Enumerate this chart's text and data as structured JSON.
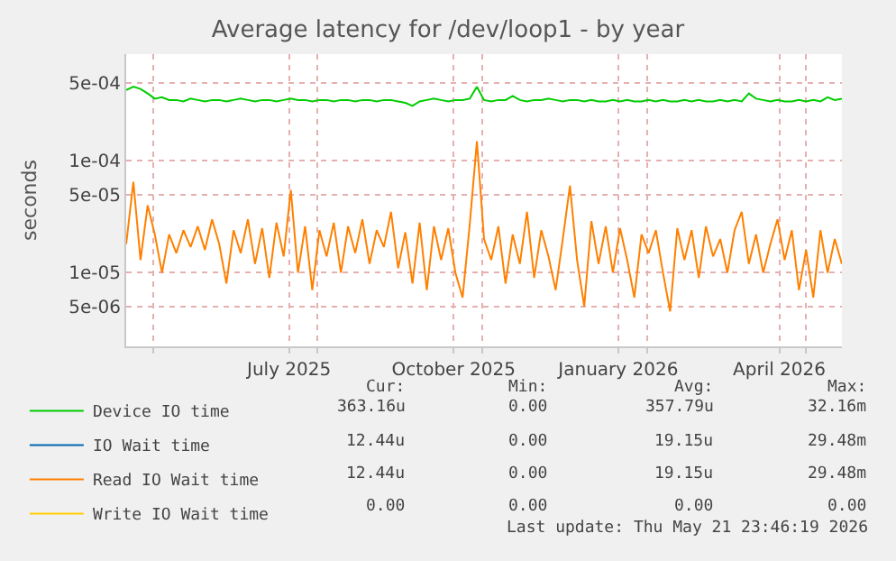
{
  "chart_data": {
    "type": "line",
    "title": "Average latency for /dev/loop1 - by year",
    "ylabel": "seconds",
    "log": "y",
    "x": [
      "2025-04-16",
      "2025-04-20",
      "2025-04-24",
      "2025-04-28",
      "2025-05-02",
      "2025-05-06",
      "2025-05-10",
      "2025-05-14",
      "2025-05-18",
      "2025-05-22",
      "2025-05-26",
      "2025-05-30",
      "2025-06-03",
      "2025-06-07",
      "2025-06-11",
      "2025-06-15",
      "2025-06-19",
      "2025-06-23",
      "2025-06-27",
      "2025-07-01",
      "2025-07-05",
      "2025-07-09",
      "2025-07-13",
      "2025-07-17",
      "2025-07-21",
      "2025-07-25",
      "2025-07-29",
      "2025-08-02",
      "2025-08-06",
      "2025-08-10",
      "2025-08-14",
      "2025-08-18",
      "2025-08-22",
      "2025-08-26",
      "2025-08-30",
      "2025-09-03",
      "2025-09-07",
      "2025-09-11",
      "2025-09-15",
      "2025-09-19",
      "2025-09-23",
      "2025-09-27",
      "2025-10-01",
      "2025-10-05",
      "2025-10-09",
      "2025-10-13",
      "2025-10-17",
      "2025-10-21",
      "2025-10-25",
      "2025-10-29",
      "2025-11-02",
      "2025-11-06",
      "2025-11-10",
      "2025-11-14",
      "2025-11-18",
      "2025-11-22",
      "2025-11-26",
      "2025-11-30",
      "2025-12-04",
      "2025-12-08",
      "2025-12-12",
      "2025-12-16",
      "2025-12-20",
      "2025-12-24",
      "2025-12-28",
      "2026-01-01",
      "2026-01-05",
      "2026-01-09",
      "2026-01-13",
      "2026-01-17",
      "2026-01-21",
      "2026-01-25",
      "2026-01-29",
      "2026-02-02",
      "2026-02-06",
      "2026-02-10",
      "2026-02-14",
      "2026-02-18",
      "2026-02-22",
      "2026-02-26",
      "2026-03-02",
      "2026-03-06",
      "2026-03-10",
      "2026-03-14",
      "2026-03-18",
      "2026-03-22",
      "2026-03-26",
      "2026-03-30",
      "2026-04-03",
      "2026-04-07",
      "2026-04-11",
      "2026-04-15",
      "2026-04-19",
      "2026-04-23",
      "2026-04-27",
      "2026-05-01",
      "2026-05-05",
      "2026-05-09",
      "2026-05-13",
      "2026-05-17",
      "2026-05-21"
    ],
    "series": [
      {
        "name": "Device IO time",
        "color": "#00cc00",
        "values": [
          0.00043,
          0.00046,
          0.00044,
          0.0004,
          0.00036,
          0.00037,
          0.00035,
          0.00035,
          0.00034,
          0.00036,
          0.00035,
          0.00034,
          0.00035,
          0.00035,
          0.00034,
          0.00035,
          0.00036,
          0.00035,
          0.00034,
          0.00035,
          0.00035,
          0.00034,
          0.00035,
          0.00036,
          0.00035,
          0.00035,
          0.00034,
          0.00035,
          0.00035,
          0.00034,
          0.00035,
          0.00035,
          0.00034,
          0.00035,
          0.00035,
          0.00034,
          0.00035,
          0.00035,
          0.00034,
          0.00033,
          0.00031,
          0.00034,
          0.00035,
          0.00036,
          0.00035,
          0.00034,
          0.00035,
          0.00035,
          0.00036,
          0.00046,
          0.00035,
          0.00034,
          0.00035,
          0.00035,
          0.00038,
          0.00035,
          0.00034,
          0.00035,
          0.00035,
          0.00036,
          0.00035,
          0.00034,
          0.00035,
          0.00035,
          0.00034,
          0.00035,
          0.00034,
          0.00034,
          0.00035,
          0.00034,
          0.00035,
          0.00034,
          0.00034,
          0.00035,
          0.00034,
          0.00035,
          0.00034,
          0.00034,
          0.00035,
          0.00034,
          0.00035,
          0.00034,
          0.00034,
          0.00035,
          0.00034,
          0.00035,
          0.00034,
          0.0004,
          0.00036,
          0.00035,
          0.00034,
          0.00035,
          0.00034,
          0.00034,
          0.00035,
          0.00034,
          0.00035,
          0.00034,
          0.00037,
          0.00035,
          0.00036
        ]
      },
      {
        "name": "IO Wait time",
        "color": "#0066b3",
        "values": [
          null,
          null,
          null,
          null,
          null,
          null,
          null,
          null,
          null,
          null,
          null,
          null,
          null,
          null,
          null,
          null,
          null,
          null,
          null,
          null,
          null,
          null,
          null,
          null,
          null,
          null,
          null,
          null,
          null,
          null,
          null,
          null,
          null,
          null,
          null,
          null,
          null,
          null,
          null,
          null,
          null,
          null,
          null,
          null,
          null,
          null,
          null,
          null,
          null,
          null,
          null,
          null,
          null,
          null,
          null,
          null,
          null,
          null,
          null,
          null,
          null,
          null,
          null,
          null,
          null,
          null,
          null,
          null,
          null,
          null,
          null,
          null,
          null,
          null,
          null,
          null,
          null,
          null,
          null,
          null,
          null,
          null,
          null,
          null,
          null,
          null,
          null,
          null,
          null,
          null,
          null,
          null,
          null,
          null,
          null,
          null,
          null,
          null,
          null,
          null,
          null
        ]
      },
      {
        "name": "Read IO Wait time",
        "color": "#ff8000",
        "values": [
          1.8e-05,
          6.5e-05,
          1.3e-05,
          4e-05,
          2.2e-05,
          1e-05,
          2.2e-05,
          1.5e-05,
          2.4e-05,
          1.7e-05,
          2.6e-05,
          1.6e-05,
          3e-05,
          1.8e-05,
          8e-06,
          2.4e-05,
          1.5e-05,
          3e-05,
          1.2e-05,
          2.5e-05,
          9e-06,
          2.8e-05,
          1.4e-05,
          5.5e-05,
          1e-05,
          2.6e-05,
          7e-06,
          2.4e-05,
          1.4e-05,
          2.8e-05,
          1e-05,
          2.6e-05,
          1.5e-05,
          3e-05,
          1.2e-05,
          2.4e-05,
          1.7e-05,
          3.5e-05,
          1.1e-05,
          2.3e-05,
          8e-06,
          2.8e-05,
          7e-06,
          2.6e-05,
          1.3e-05,
          2.5e-05,
          1e-05,
          6e-06,
          2.7e-05,
          0.00015,
          2e-05,
          1.3e-05,
          2.6e-05,
          8e-06,
          2.2e-05,
          1.2e-05,
          3.5e-05,
          9e-06,
          2.4e-05,
          1.4e-05,
          7e-06,
          2e-05,
          6e-05,
          1.3e-05,
          5e-06,
          2.9e-05,
          1.2e-05,
          2.6e-05,
          1e-05,
          2.5e-05,
          1.3e-05,
          6e-06,
          2.2e-05,
          1.5e-05,
          2.4e-05,
          1e-05,
          4.5e-06,
          2.5e-05,
          1.3e-05,
          2.4e-05,
          9e-06,
          2.6e-05,
          1.4e-05,
          2e-05,
          1e-05,
          2.4e-05,
          3.5e-05,
          1.2e-05,
          2.2e-05,
          1e-05,
          1.8e-05,
          3e-05,
          1.3e-05,
          2.4e-05,
          7e-06,
          1.6e-05,
          6e-06,
          2.4e-05,
          1e-05,
          2e-05,
          1.2e-05
        ]
      },
      {
        "name": "Write IO Wait time",
        "color": "#ffcc00",
        "values": [
          null,
          null,
          null,
          null,
          null,
          null,
          null,
          null,
          null,
          null,
          null,
          null,
          null,
          null,
          null,
          null,
          null,
          null,
          null,
          null,
          null,
          null,
          null,
          null,
          null,
          null,
          null,
          null,
          null,
          null,
          null,
          null,
          null,
          null,
          null,
          null,
          null,
          null,
          null,
          null,
          null,
          null,
          null,
          null,
          null,
          null,
          null,
          null,
          null,
          null,
          null,
          null,
          null,
          null,
          null,
          null,
          null,
          null,
          null,
          null,
          null,
          null,
          null,
          null,
          null,
          null,
          null,
          null,
          null,
          null,
          null,
          null,
          null,
          null,
          null,
          null,
          null,
          null,
          null,
          null,
          null,
          null,
          null,
          null,
          null,
          null,
          null,
          null,
          null,
          null,
          null,
          null,
          null,
          null,
          null,
          null,
          null,
          null,
          null,
          null,
          null
        ]
      }
    ],
    "xlim": [
      "2025-04-16",
      "2026-05-21"
    ],
    "xticks": [
      {
        "value": "2025-05-01",
        "label": null
      },
      {
        "value": "2025-07-16",
        "label": "July 2025"
      },
      {
        "value": "2025-08-01",
        "label": null
      },
      {
        "value": "2025-10-16",
        "label": "October 2025"
      },
      {
        "value": "2025-11-01",
        "label": null
      },
      {
        "value": "2026-01-16",
        "label": "January 2026"
      },
      {
        "value": "2026-02-01",
        "label": null
      },
      {
        "value": "2026-04-16",
        "label": "April 2026"
      },
      {
        "value": "2026-05-01",
        "label": null
      }
    ],
    "ylim": [
      2.2e-06,
      0.0009
    ],
    "yticks": [
      {
        "value": 5e-06,
        "label": "5e-06"
      },
      {
        "value": 1e-05,
        "label": "1e-05"
      },
      {
        "value": 5e-05,
        "label": "5e-05"
      },
      {
        "value": 0.0001,
        "label": "1e-04"
      },
      {
        "value": 0.0005,
        "label": "5e-04"
      }
    ],
    "grid": true,
    "legend": "bottom",
    "annotations": [
      "Cur:",
      "Min:",
      "Avg:",
      "Max:",
      "363.16u",
      "0.00",
      "357.79u",
      "32.16m",
      "12.44u",
      "0.00",
      "19.15u",
      "29.48m",
      "12.44u",
      "0.00",
      "19.15u",
      "29.48m",
      "0.00",
      "0.00",
      "0.00",
      "0.00",
      "Last update: Thu May 21 23:46:19 2026"
    ]
  }
}
